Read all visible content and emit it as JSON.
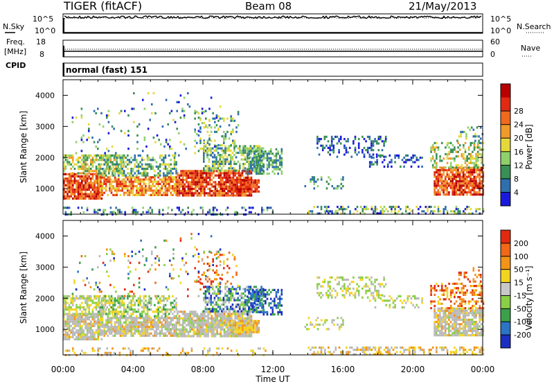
{
  "header": {
    "radar": "TIGER (fitACF)",
    "beam": "Beam 08",
    "date": "21/May/2013"
  },
  "top_panels": {
    "nsky_label": "N.Sky",
    "nsearch_label": "N.Search",
    "freq_label_1": "Freq.",
    "freq_label_2": "[MHz]",
    "nave_label": "Nave",
    "cpid_label": "CPID",
    "cpid_value": "normal (fast) 151",
    "noise_ticks": [
      "10^5",
      "10^0"
    ],
    "freq_ticks": [
      "18",
      "8"
    ],
    "nave_ticks": [
      "60",
      "0"
    ]
  },
  "colors": {
    "power_scale": [
      "#1a1adc",
      "#2f6fae",
      "#3a8f55",
      "#8fd06a",
      "#e5d83a",
      "#f09a2a",
      "#f06a1e",
      "#e22a12",
      "#b80000"
    ],
    "velocity_scale": [
      "#1d2fc0",
      "#2c74c4",
      "#3aa04a",
      "#8ad045",
      "#c8c8c8",
      "#f3d520",
      "#f39318",
      "#f06818",
      "#e32a10"
    ],
    "ground_scatter": "#b9b9b9"
  },
  "chart_data": [
    {
      "type": "heatmap",
      "name": "",
      "xlabel": "",
      "ylabel": "Slant Range [km]",
      "x_ticks": [
        "00:00",
        "04:00",
        "08:00",
        "12:00",
        "16:00",
        "20:00",
        "00:00"
      ],
      "y_ticks": [
        1000,
        2000,
        3000,
        4000
      ],
      "xlim_hours": [
        0,
        24
      ],
      "ylim_km": [
        180,
        4500
      ],
      "colorbar": {
        "label": "Power [dB]",
        "ticks": [
          4,
          8,
          12,
          16,
          20,
          24,
          28
        ]
      }
    },
    {
      "type": "heatmap",
      "name": "",
      "xlabel": "Time UT",
      "ylabel": "Slant Range [km]",
      "x_ticks": [
        "00:00",
        "04:00",
        "08:00",
        "12:00",
        "16:00",
        "20:00",
        "00:00"
      ],
      "y_ticks": [
        1000,
        2000,
        3000,
        4000
      ],
      "xlim_hours": [
        0,
        24
      ],
      "ylim_km": [
        180,
        4500
      ],
      "colorbar": {
        "label": "Velocity [m s⁻¹]",
        "ticks": [
          200,
          100,
          50,
          15,
          -15,
          -50,
          -100,
          -200
        ]
      }
    }
  ]
}
